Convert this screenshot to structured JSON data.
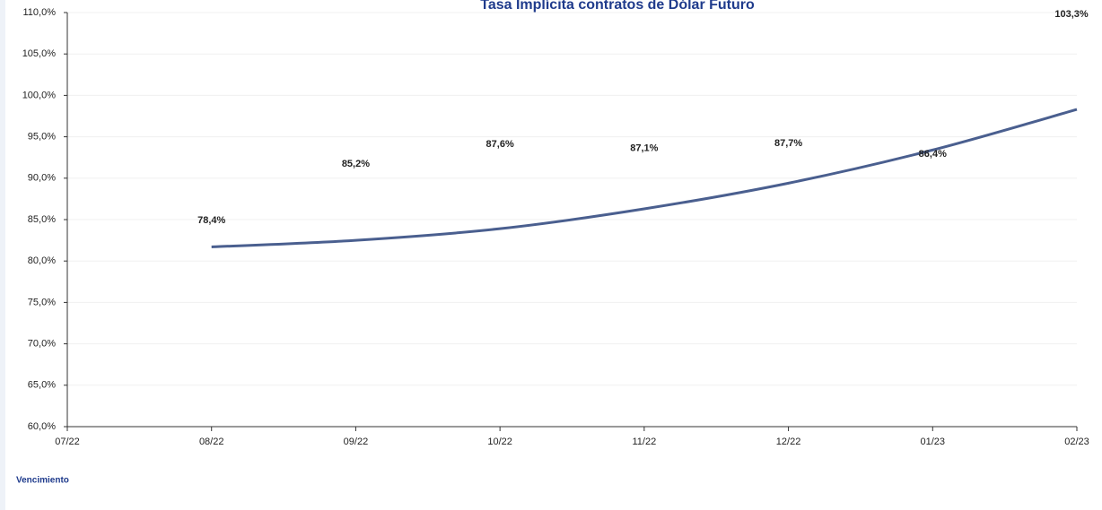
{
  "chart_data": {
    "type": "line",
    "title": "Tasa Implícita contratos de Dólar Futuro",
    "x_label": "Vencimiento",
    "categories": [
      "07/22",
      "08/22",
      "09/22",
      "10/22",
      "11/22",
      "12/22",
      "01/23",
      "02/23"
    ],
    "series": [
      {
        "color": "#4a5f8f",
        "values": [
          null,
          78.4,
          85.2,
          87.6,
          87.1,
          87.7,
          86.4,
          103.3
        ],
        "value_labels": [
          null,
          "78,4%",
          "85,2%",
          "87,6%",
          "87,1%",
          "87,7%",
          "86,4%",
          "103,3%"
        ]
      }
    ],
    "trendline": {
      "color": "#4a5f8f",
      "values": [
        null,
        81.7,
        82.5,
        83.9,
        86.3,
        89.4,
        93.4,
        98.3
      ]
    },
    "ylim": [
      60,
      110
    ],
    "yticks": [
      {
        "value": 60,
        "label": "60,0%"
      },
      {
        "value": 65,
        "label": "65,0%"
      },
      {
        "value": 70,
        "label": "70,0%"
      },
      {
        "value": 75,
        "label": "75,0%"
      },
      {
        "value": 80,
        "label": "80,0%"
      },
      {
        "value": 85,
        "label": "85,0%"
      },
      {
        "value": 90,
        "label": "90,0%"
      },
      {
        "value": 95,
        "label": "95,0%"
      },
      {
        "value": 100,
        "label": "100,0%"
      },
      {
        "value": 105,
        "label": "105,0%"
      },
      {
        "value": 110,
        "label": "110,0%"
      }
    ],
    "grid": true
  }
}
